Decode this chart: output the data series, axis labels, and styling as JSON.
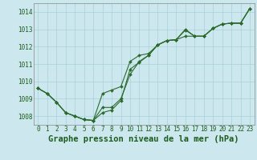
{
  "title": "Graphe pression niveau de la mer (hPa)",
  "x_labels": [
    "0",
    "1",
    "2",
    "3",
    "4",
    "5",
    "6",
    "7",
    "8",
    "9",
    "10",
    "11",
    "12",
    "13",
    "14",
    "15",
    "16",
    "17",
    "18",
    "19",
    "20",
    "21",
    "22",
    "23"
  ],
  "ylim": [
    1007.5,
    1014.5
  ],
  "yticks": [
    1008,
    1009,
    1010,
    1011,
    1012,
    1013,
    1014
  ],
  "series": [
    [
      1009.6,
      1009.3,
      1008.8,
      1008.2,
      1008.0,
      1007.8,
      1007.75,
      1009.3,
      1009.5,
      1009.7,
      1011.15,
      1011.5,
      1011.6,
      1012.1,
      1012.35,
      1012.4,
      1013.0,
      1012.6,
      1012.6,
      1013.05,
      1013.3,
      1013.35,
      1013.35,
      1014.2
    ],
    [
      1009.6,
      1009.3,
      1008.8,
      1008.2,
      1008.0,
      1007.8,
      1007.75,
      1008.5,
      1008.5,
      1009.0,
      1010.4,
      1011.15,
      1011.5,
      1012.1,
      1012.35,
      1012.4,
      1012.95,
      1012.6,
      1012.6,
      1013.05,
      1013.3,
      1013.35,
      1013.35,
      1014.2
    ],
    [
      1009.6,
      1009.3,
      1008.8,
      1008.2,
      1008.0,
      1007.8,
      1007.75,
      1008.2,
      1008.35,
      1008.9,
      1010.7,
      1011.1,
      1011.5,
      1012.1,
      1012.35,
      1012.4,
      1012.6,
      1012.6,
      1012.6,
      1013.05,
      1013.3,
      1013.35,
      1013.35,
      1014.2
    ]
  ],
  "line_color": "#2d6a2d",
  "marker": "D",
  "marker_size": 2.0,
  "bg_color": "#cce8ee",
  "grid_color": "#a8d0d8",
  "label_color": "#1a5c1a",
  "title_fontsize": 7.5,
  "tick_fontsize": 5.5,
  "linewidth": 0.8
}
